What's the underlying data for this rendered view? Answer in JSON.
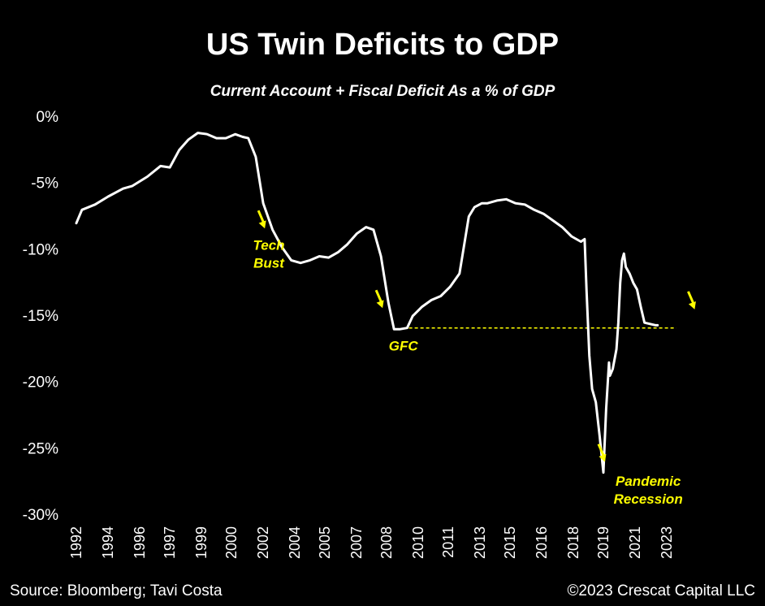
{
  "colors": {
    "background": "#000000",
    "line": "#ffffff",
    "text": "#ffffff",
    "annotation": "#ffff00",
    "reference_line": "#ffff00"
  },
  "chart_data": {
    "type": "line",
    "title": "US Twin Deficits to GDP",
    "subtitle": "Current Account + Fiscal Deficit As a % of GDP",
    "xlabel": "",
    "ylabel": "",
    "ylim": [
      -30,
      0
    ],
    "xlim": [
      1992.0,
      2024.2
    ],
    "grid": false,
    "yticks": [
      0,
      -5,
      -10,
      -15,
      -20,
      -25,
      -30
    ],
    "ytick_labels": [
      "0%",
      "-5%",
      "-10%",
      "-15%",
      "-20%",
      "-25%",
      "-30%"
    ],
    "xtick_labels": [
      "1992",
      "1994",
      "1996",
      "1997",
      "1999",
      "2000",
      "2002",
      "2004",
      "2005",
      "2007",
      "2008",
      "2010",
      "2011",
      "2013",
      "2015",
      "2016",
      "2018",
      "2019",
      "2021",
      "2023"
    ],
    "xtick_years": [
      1992.0,
      1993.7,
      1995.4,
      1997.0,
      1998.7,
      2000.3,
      2002.0,
      2003.7,
      2005.3,
      2007.0,
      2008.6,
      2010.3,
      2011.9,
      2013.6,
      2015.2,
      2016.9,
      2018.6,
      2020.2,
      2021.9,
      2023.6
    ],
    "series": [
      {
        "name": "Current Account + Fiscal Deficit (% of GDP)",
        "x": [
          1992.0,
          1992.3,
          1993.0,
          1993.7,
          1994.5,
          1995.0,
          1995.8,
          1996.5,
          1997.0,
          1997.5,
          1998.0,
          1998.5,
          1999.0,
          1999.5,
          2000.0,
          2000.5,
          2000.9,
          2001.2,
          2001.6,
          2002.0,
          2002.5,
          2003.0,
          2003.5,
          2004.0,
          2004.5,
          2005.0,
          2005.5,
          2006.0,
          2006.5,
          2007.0,
          2007.5,
          2007.9,
          2008.3,
          2008.7,
          2009.0,
          2009.3,
          2009.7,
          2010.0,
          2010.5,
          2011.0,
          2011.5,
          2012.0,
          2012.5,
          2013.0,
          2013.3,
          2013.7,
          2014.0,
          2014.5,
          2015.0,
          2015.5,
          2016.0,
          2016.5,
          2017.0,
          2017.5,
          2018.0,
          2018.5,
          2019.0,
          2019.2,
          2019.3,
          2019.45,
          2019.6,
          2019.8,
          2020.0,
          2020.2,
          2020.35,
          2020.5,
          2020.55,
          2020.7,
          2020.9,
          2021.0,
          2021.1,
          2021.2,
          2021.3,
          2021.4,
          2021.6,
          2021.8,
          2022.0,
          2022.2,
          2022.4,
          2022.7,
          2023.0,
          2023.1
        ],
        "values": [
          -8.0,
          -7.0,
          -6.6,
          -6.0,
          -5.4,
          -5.2,
          -4.5,
          -3.7,
          -3.8,
          -2.5,
          -1.7,
          -1.2,
          -1.3,
          -1.6,
          -1.6,
          -1.3,
          -1.5,
          -1.6,
          -3.0,
          -6.5,
          -8.5,
          -9.8,
          -10.8,
          -11.0,
          -10.8,
          -10.5,
          -10.6,
          -10.2,
          -9.6,
          -8.8,
          -8.3,
          -8.5,
          -10.5,
          -14.0,
          -16.0,
          -16.0,
          -15.9,
          -15.0,
          -14.3,
          -13.8,
          -13.5,
          -12.8,
          -11.8,
          -7.5,
          -6.8,
          -6.5,
          -6.5,
          -6.3,
          -6.2,
          -6.5,
          -6.6,
          -7.0,
          -7.3,
          -7.8,
          -8.3,
          -9.0,
          -9.4,
          -9.2,
          -13.0,
          -18.0,
          -20.5,
          -21.5,
          -24.0,
          -26.8,
          -22.0,
          -18.5,
          -19.5,
          -19.0,
          -17.5,
          -15.5,
          -12.5,
          -10.8,
          -10.3,
          -11.3,
          -11.8,
          -12.5,
          -13.0,
          -14.3,
          -15.5,
          -15.6,
          -15.7,
          -15.7
        ]
      }
    ],
    "reference_line": {
      "value": -15.9,
      "x_start": 2009.8,
      "x_end": 2024.1,
      "style": "dashed"
    },
    "annotations": [
      {
        "label_lines": [
          "Tech",
          "Bust"
        ],
        "x": 2002.3,
        "y": -10.0,
        "arrow_x": 2002.0,
        "arrow_y": -8.4
      },
      {
        "label_lines": [
          "GFC"
        ],
        "x": 2009.5,
        "y": -17.6,
        "arrow_x": 2008.3,
        "arrow_y": -14.4
      },
      {
        "label_lines": [
          "Pandemic",
          "Recession"
        ],
        "x": 2022.6,
        "y": -27.8,
        "arrow_x": 2020.2,
        "arrow_y": -26.0
      },
      {
        "label_lines": [],
        "x": 2025.0,
        "y": -14.5,
        "arrow_x": 2025.0,
        "arrow_y": -14.5
      }
    ]
  },
  "footer": {
    "source": "Source: Bloomberg; Tavi Costa",
    "copyright": "©2023 Crescat Capital LLC"
  }
}
